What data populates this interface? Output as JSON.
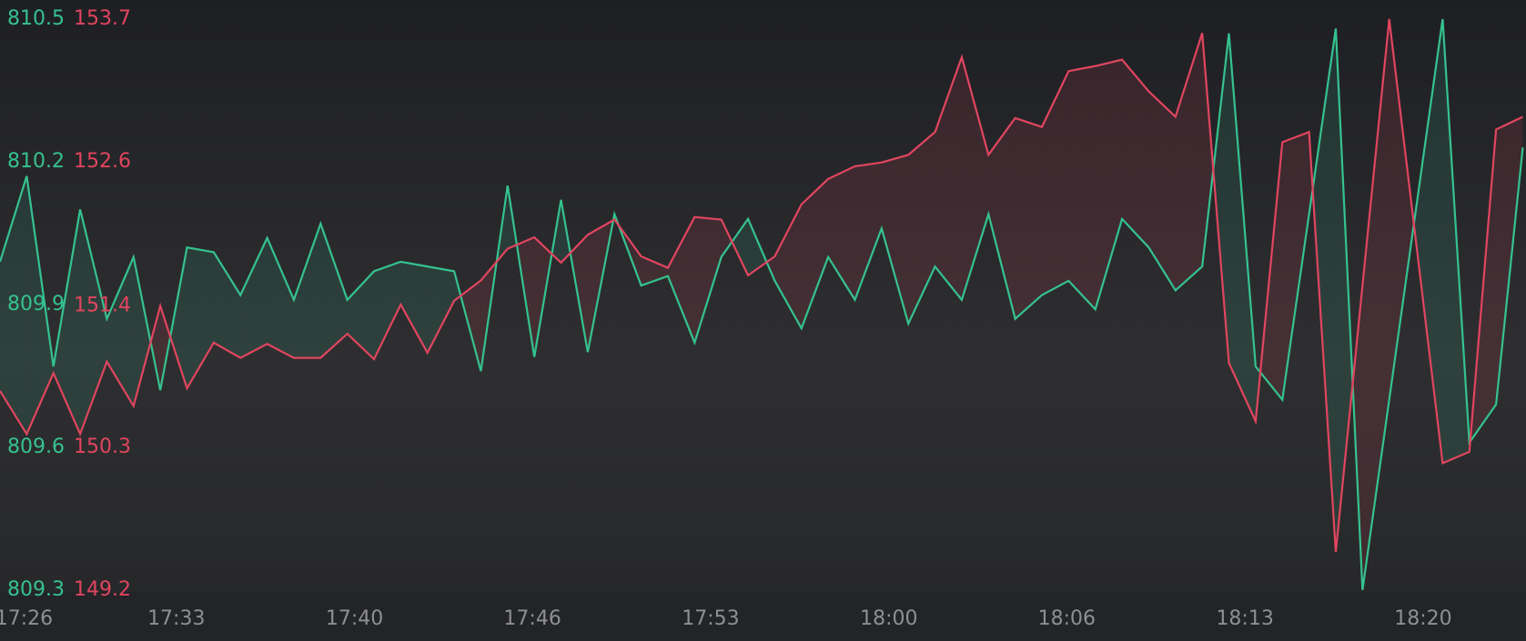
{
  "chart_data": {
    "type": "line",
    "fill_between": true,
    "x": [
      0,
      1,
      2,
      3,
      4,
      5,
      6,
      7,
      8,
      9,
      10,
      11,
      12,
      13,
      14,
      15,
      16,
      17,
      18,
      19,
      20,
      21,
      22,
      23,
      24,
      25,
      26,
      27,
      28,
      29,
      30,
      31,
      32,
      33,
      34,
      35,
      36,
      37,
      38,
      39,
      40,
      41,
      42,
      43,
      44,
      45,
      46,
      47,
      48,
      49,
      50,
      51,
      52,
      53,
      54,
      55,
      56,
      57
    ],
    "xlim": [
      0,
      57.12
    ],
    "xticks": [
      {
        "value": 0.9,
        "label": "17:26"
      },
      {
        "value": 6.6,
        "label": "17:33"
      },
      {
        "value": 13.27,
        "label": "17:40"
      },
      {
        "value": 19.93,
        "label": "17:46"
      },
      {
        "value": 26.6,
        "label": "17:53"
      },
      {
        "value": 33.27,
        "label": "18:00"
      },
      {
        "value": 39.93,
        "label": "18:06"
      },
      {
        "value": 46.6,
        "label": "18:13"
      },
      {
        "value": 53.27,
        "label": "18:20"
      }
    ],
    "ylim": [
      809.3,
      810.5
    ],
    "yticks": [
      809.3,
      809.6,
      809.9,
      810.2,
      810.5
    ],
    "y2lim": [
      149.2,
      153.7
    ],
    "y2ticks": [
      149.2,
      {
        "value": 150.325,
        "label": "150.3"
      },
      {
        "value": 151.44,
        "label": "151.4"
      },
      {
        "value": 152.575,
        "label": "152.6"
      },
      153.7
    ],
    "series": [
      {
        "color": "#35c28f",
        "values": [
          809.99,
          810.17,
          809.77,
          810.1,
          809.87,
          810.0,
          809.72,
          810.02,
          810.01,
          809.92,
          810.04,
          809.91,
          810.07,
          809.91,
          809.97,
          809.99,
          809.98,
          809.97,
          809.76,
          810.15,
          809.79,
          810.12,
          809.8,
          810.09,
          809.94,
          809.96,
          809.82,
          810.0,
          810.08,
          809.95,
          809.85,
          810.0,
          809.91,
          810.06,
          809.86,
          809.98,
          809.91,
          810.09,
          809.87,
          809.92,
          809.95,
          809.89,
          810.08,
          810.02,
          809.93,
          809.98,
          810.47,
          809.77,
          809.7,
          810.09,
          810.48,
          809.3,
          809.7,
          810.1,
          810.5,
          809.61,
          809.69,
          810.23
        ]
      },
      {
        "color": "#e0455f",
        "axis": "y2",
        "values": [
          150.77,
          150.43,
          150.91,
          150.43,
          151.0,
          150.65,
          151.44,
          150.79,
          151.15,
          151.03,
          151.14,
          151.03,
          151.03,
          151.22,
          151.02,
          151.45,
          151.07,
          151.48,
          151.64,
          151.89,
          151.98,
          151.78,
          152.0,
          152.12,
          151.83,
          151.74,
          152.14,
          152.12,
          151.68,
          151.83,
          152.24,
          152.44,
          152.54,
          152.57,
          152.63,
          152.81,
          153.4,
          152.63,
          152.92,
          152.85,
          153.29,
          153.33,
          153.38,
          153.13,
          152.93,
          153.59,
          150.99,
          150.53,
          152.73,
          152.81,
          149.5,
          151.6,
          153.7,
          151.95,
          150.2,
          150.29,
          152.83,
          152.93
        ]
      }
    ]
  }
}
